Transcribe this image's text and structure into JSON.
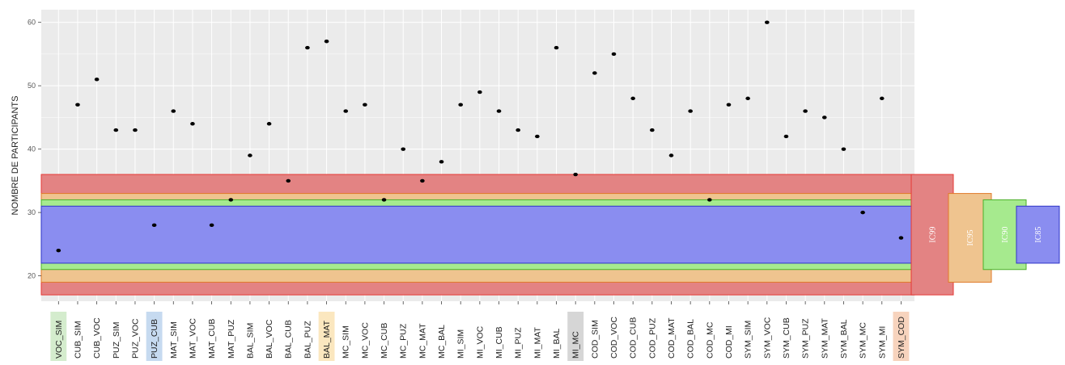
{
  "chart_data": {
    "type": "scatter",
    "title": "",
    "xlabel": "",
    "ylabel": "NOMBRE DE PARTICIPANTS",
    "ylim": [
      16,
      62
    ],
    "yticks": [
      20,
      30,
      40,
      50,
      60
    ],
    "grid": true,
    "categories": [
      "VOC_SIM",
      "CUB_SIM",
      "CUB_VOC",
      "PUZ_SIM",
      "PUZ_VOC",
      "PUZ_CUB",
      "MAT_SIM",
      "MAT_VOC",
      "MAT_CUB",
      "MAT_PUZ",
      "BAL_SIM",
      "BAL_VOC",
      "BAL_CUB",
      "BAL_PUZ",
      "BAL_MAT",
      "MC_SIM",
      "MC_VOC",
      "MC_CUB",
      "MC_PUZ",
      "MC_MAT",
      "MC_BAL",
      "MI_SIM",
      "MI_VOC",
      "MI_CUB",
      "MI_PUZ",
      "MI_MAT",
      "MI_BAL",
      "MI_MC",
      "COD_SIM",
      "COD_VOC",
      "COD_CUB",
      "COD_PUZ",
      "COD_MAT",
      "COD_BAL",
      "COD_MC",
      "COD_MI",
      "SYM_SIM",
      "SYM_VOC",
      "SYM_CUB",
      "SYM_PUZ",
      "SYM_MAT",
      "SYM_BAL",
      "SYM_MC",
      "SYM_MI",
      "SYM_COD"
    ],
    "values": [
      24,
      47,
      51,
      43,
      43,
      28,
      46,
      44,
      28,
      32,
      39,
      44,
      35,
      56,
      57,
      46,
      47,
      32,
      40,
      35,
      38,
      47,
      49,
      46,
      43,
      42,
      56,
      36,
      52,
      55,
      48,
      43,
      39,
      46,
      32,
      47,
      48,
      60,
      42,
      46,
      45,
      40,
      30,
      48,
      26
    ],
    "highlighted_categories": [
      {
        "category": "VOC_SIM",
        "color": "#d4eccd"
      },
      {
        "category": "PUZ_CUB",
        "color": "#c6daf0"
      },
      {
        "category": "BAL_MAT",
        "color": "#fbe7bf"
      },
      {
        "category": "MI_MC",
        "color": "#d6d6d6"
      },
      {
        "category": "SYM_COD",
        "color": "#f7d3bd"
      }
    ],
    "confidence_bands": [
      {
        "name": "IC99",
        "low": 17,
        "high": 36,
        "color": "#e38383",
        "border": "#e53935"
      },
      {
        "name": "IC95",
        "low": 19,
        "high": 33,
        "color": "#efc48f",
        "border": "#e07a2a"
      },
      {
        "name": "IC90",
        "low": 21,
        "high": 32,
        "color": "#a6ea8e",
        "border": "#4caf2a"
      },
      {
        "name": "IC85",
        "low": 22,
        "high": 31,
        "color": "#8a8df0",
        "border": "#2e35c8"
      }
    ],
    "panel_color": "#ebebeb",
    "point_color": "#000000"
  }
}
